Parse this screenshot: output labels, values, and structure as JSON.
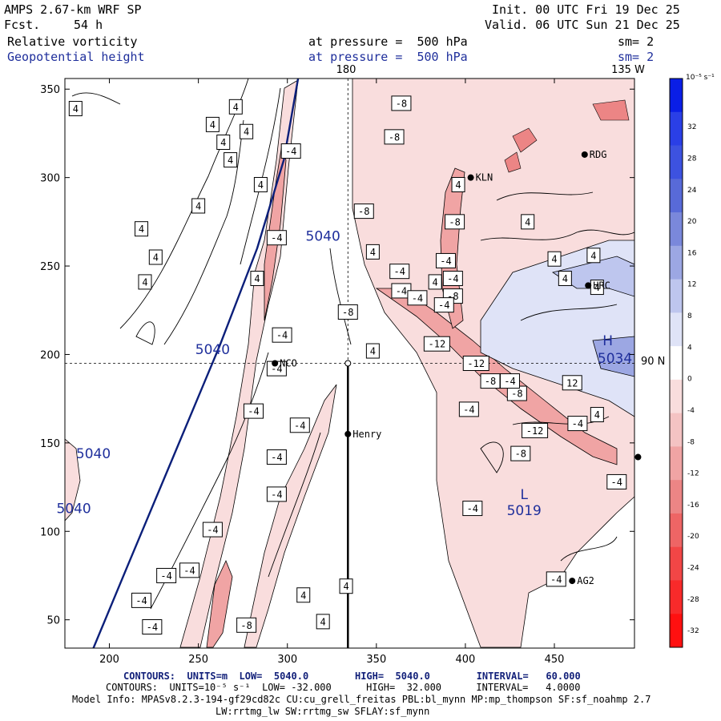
{
  "header": {
    "model": "AMPS 2.67-km WRF SP",
    "forecast_label": "Fcst.",
    "forecast_value": "54 h",
    "init": "Init. 00 UTC Fri 19 Dec 25",
    "valid": "Valid. 06 UTC Sun 21 Dec 25",
    "field1_name": "Relative vorticity",
    "field1_level": "at pressure =  500 hPa",
    "field1_sm": "sm= 2",
    "field2_name": "Geopotential height",
    "field2_level": "at pressure =  500 hPa",
    "field2_sm": "sm= 2"
  },
  "colors": {
    "height_contour": "#0b1f7a",
    "text_blue": "#1f2f9c",
    "positive_max": "#0a1ee6",
    "negative_max": "#ff1010"
  },
  "chart_data": {
    "type": "contour-map",
    "xlim": [
      175,
      495
    ],
    "ylim": [
      34,
      356
    ],
    "x_ticks": [
      200,
      250,
      300,
      350,
      400,
      450
    ],
    "y_ticks": [
      50,
      100,
      150,
      200,
      250,
      300,
      350
    ],
    "grid_labels": {
      "top_lon": "180",
      "top_right_lon": "135 W",
      "right_lat": "90 N"
    },
    "reference_lines": {
      "x": 334,
      "y": 195
    },
    "stations": [
      {
        "name": "NCO",
        "x": 293,
        "y": 195
      },
      {
        "name": "Henry",
        "x": 334,
        "y": 155
      },
      {
        "name": "KLN",
        "x": 403,
        "y": 300
      },
      {
        "name": "RDG",
        "x": 467,
        "y": 313
      },
      {
        "name": "HRC",
        "x": 469,
        "y": 239
      },
      {
        "name": "AG2",
        "x": 460,
        "y": 72
      },
      {
        "name": "",
        "x": 497,
        "y": 142
      }
    ],
    "height_contours": [
      {
        "label": "5040",
        "points": [
          [
            191,
            34
          ],
          [
            210,
            80
          ],
          [
            235,
            140
          ],
          [
            262,
            205
          ],
          [
            283,
            260
          ],
          [
            298,
            310
          ],
          [
            306,
            356
          ]
        ]
      }
    ],
    "height_labels": [
      {
        "text": "5040",
        "x": 320,
        "y": 267
      },
      {
        "text": "5040",
        "x": 258,
        "y": 203
      },
      {
        "text": "5040",
        "x": 191,
        "y": 144
      },
      {
        "text": "5040",
        "x": 180,
        "y": 113
      },
      {
        "text": "L",
        "x": 433,
        "y": 121
      },
      {
        "text": "5019",
        "x": 433,
        "y": 112
      },
      {
        "text": "H",
        "x": 480,
        "y": 208
      },
      {
        "text": "5034",
        "x": 484,
        "y": 198
      }
    ],
    "vorticity_labels": [
      {
        "v": "4",
        "x": 181,
        "y": 339
      },
      {
        "v": "4",
        "x": 258,
        "y": 330
      },
      {
        "v": "4",
        "x": 271,
        "y": 340
      },
      {
        "v": "4",
        "x": 264,
        "y": 320
      },
      {
        "v": "4",
        "x": 277,
        "y": 326
      },
      {
        "v": "4",
        "x": 268,
        "y": 310
      },
      {
        "v": "4",
        "x": 250,
        "y": 284
      },
      {
        "v": "4",
        "x": 285,
        "y": 296
      },
      {
        "v": "4",
        "x": 218,
        "y": 271
      },
      {
        "v": "4",
        "x": 226,
        "y": 255
      },
      {
        "v": "4",
        "x": 220,
        "y": 241
      },
      {
        "v": "4",
        "x": 283,
        "y": 243
      },
      {
        "v": "4",
        "x": 348,
        "y": 258
      },
      {
        "v": "4",
        "x": 348,
        "y": 202
      },
      {
        "v": "4",
        "x": 396,
        "y": 296
      },
      {
        "v": "4",
        "x": 435,
        "y": 275
      },
      {
        "v": "4",
        "x": 450,
        "y": 254
      },
      {
        "v": "4",
        "x": 456,
        "y": 243
      },
      {
        "v": "4",
        "x": 474,
        "y": 238
      },
      {
        "v": "4",
        "x": 472,
        "y": 256
      },
      {
        "v": "4",
        "x": 474,
        "y": 166
      },
      {
        "v": "4",
        "x": 383,
        "y": 241
      },
      {
        "v": "4",
        "x": 333,
        "y": 69
      },
      {
        "v": "4",
        "x": 320,
        "y": 49
      },
      {
        "v": "4",
        "x": 309,
        "y": 64
      },
      {
        "v": "-8",
        "x": 364,
        "y": 342
      },
      {
        "v": "-8",
        "x": 360,
        "y": 323
      },
      {
        "v": "-8",
        "x": 343,
        "y": 281
      },
      {
        "v": "-8",
        "x": 394,
        "y": 275
      },
      {
        "v": "-8",
        "x": 393,
        "y": 233
      },
      {
        "v": "-8",
        "x": 334,
        "y": 224
      },
      {
        "v": "-8",
        "x": 414,
        "y": 185
      },
      {
        "v": "-8",
        "x": 429,
        "y": 178
      },
      {
        "v": "-8",
        "x": 431,
        "y": 144
      },
      {
        "v": "-8",
        "x": 277,
        "y": 47
      },
      {
        "v": "-4",
        "x": 302,
        "y": 315
      },
      {
        "v": "-4",
        "x": 294,
        "y": 266
      },
      {
        "v": "-4",
        "x": 297,
        "y": 211
      },
      {
        "v": "-4",
        "x": 294,
        "y": 192
      },
      {
        "v": "-4",
        "x": 281,
        "y": 168
      },
      {
        "v": "-4",
        "x": 294,
        "y": 142
      },
      {
        "v": "-4",
        "x": 294,
        "y": 121
      },
      {
        "v": "-4",
        "x": 307,
        "y": 160
      },
      {
        "v": "-4",
        "x": 363,
        "y": 247
      },
      {
        "v": "-4",
        "x": 364,
        "y": 236
      },
      {
        "v": "-4",
        "x": 373,
        "y": 232
      },
      {
        "v": "-4",
        "x": 389,
        "y": 253
      },
      {
        "v": "-4",
        "x": 388,
        "y": 228
      },
      {
        "v": "-4",
        "x": 393,
        "y": 243
      },
      {
        "v": "-4",
        "x": 402,
        "y": 169
      },
      {
        "v": "-4",
        "x": 425,
        "y": 185
      },
      {
        "v": "-4",
        "x": 463,
        "y": 161
      },
      {
        "v": "-4",
        "x": 485,
        "y": 128
      },
      {
        "v": "-4",
        "x": 404,
        "y": 113
      },
      {
        "v": "-4",
        "x": 451,
        "y": 73
      },
      {
        "v": "-4",
        "x": 258,
        "y": 101
      },
      {
        "v": "-4",
        "x": 245,
        "y": 78
      },
      {
        "v": "-4",
        "x": 232,
        "y": 75
      },
      {
        "v": "-4",
        "x": 218,
        "y": 61
      },
      {
        "v": "-4",
        "x": 224,
        "y": 46
      },
      {
        "v": "-12",
        "x": 384,
        "y": 206
      },
      {
        "v": "-12",
        "x": 406,
        "y": 195
      },
      {
        "v": "-12",
        "x": 439,
        "y": 157
      },
      {
        "v": "12",
        "x": 460,
        "y": 184
      }
    ]
  },
  "colorbar": {
    "unit_label": "10⁻⁵ s⁻¹",
    "ticks": [
      "32",
      "28",
      "24",
      "20",
      "16",
      "12",
      "8",
      "4",
      "0",
      "-4",
      "-8",
      "-12",
      "-16",
      "-20",
      "-24",
      "-28",
      "-32"
    ],
    "colors": [
      "#0a1ee6",
      "#2a3fe6",
      "#3d52e0",
      "#586ad8",
      "#7a88db",
      "#9ca7e3",
      "#bec6ee",
      "#dfe3f7",
      "#ffffff",
      "#f9dddd",
      "#f4c3c3",
      "#f0a4a4",
      "#ec8585",
      "#ee6565",
      "#f24646",
      "#f82a2a",
      "#ff1010"
    ]
  },
  "footer": {
    "line1": "CONTOURS:  UNITS=m  LOW=  5040.0        HIGH=  5040.0        INTERVAL=   60.000",
    "line2": "CONTOURS:  UNITS=10⁻⁵ s⁻¹  LOW= -32.000      HIGH=  32.000      INTERVAL=   4.0000",
    "line3": "Model Info: MPASv8.2.3-194-gf29cd82c CU:cu_grell_freitas PBL:bl_mynn MP:mp_thompson SF:sf_noahmp 2.7",
    "line4": "LW:rrtmg_lw SW:rrtmg_sw SFLAY:sf_mynn"
  }
}
